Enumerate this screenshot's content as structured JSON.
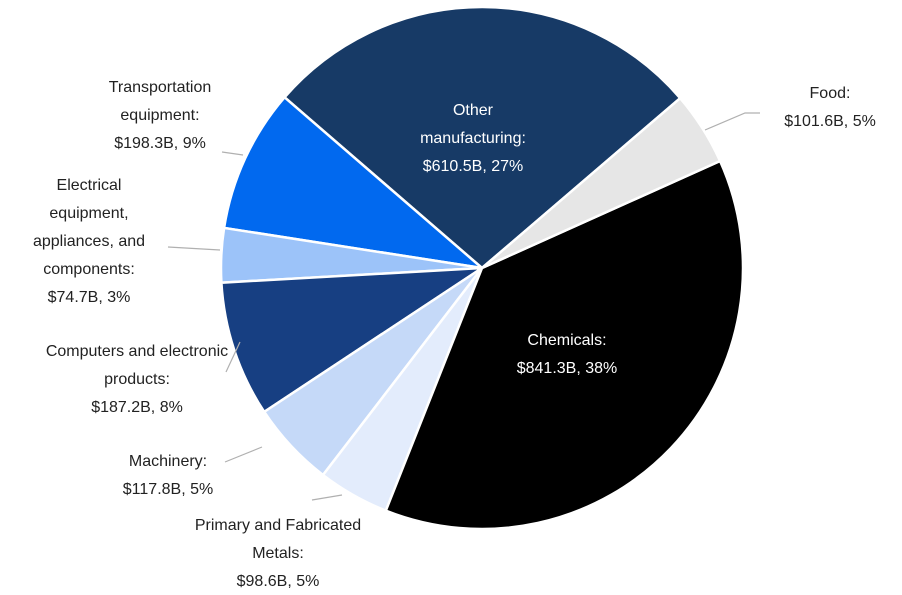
{
  "chart_data": {
    "type": "pie",
    "categories": [
      "Food:",
      "Chemicals:",
      "Primary and Fabricated Metals:",
      "Machinery:",
      "Computers and electronic products:",
      "Electrical equipment, appliances, and components:",
      "Transportation equipment:",
      "Other manufacturing:"
    ],
    "values": [
      101.6,
      841.3,
      98.6,
      117.8,
      187.2,
      74.7,
      198.3,
      610.5
    ],
    "value_labels": [
      "$101.6B, 5%",
      "$841.3B, 38%",
      "$98.6B, 5%",
      "$117.8B, 5%",
      "$187.2B, 8%",
      "$74.7B, 3%",
      "$198.3B, 9%",
      "$610.5B, 27%"
    ],
    "colors": [
      "#e6e6e6",
      "#000000",
      "#e3ecfc",
      "#c5d9f8",
      "#173f82",
      "#9cc3f9",
      "#0169ef",
      "#173a66"
    ]
  }
}
